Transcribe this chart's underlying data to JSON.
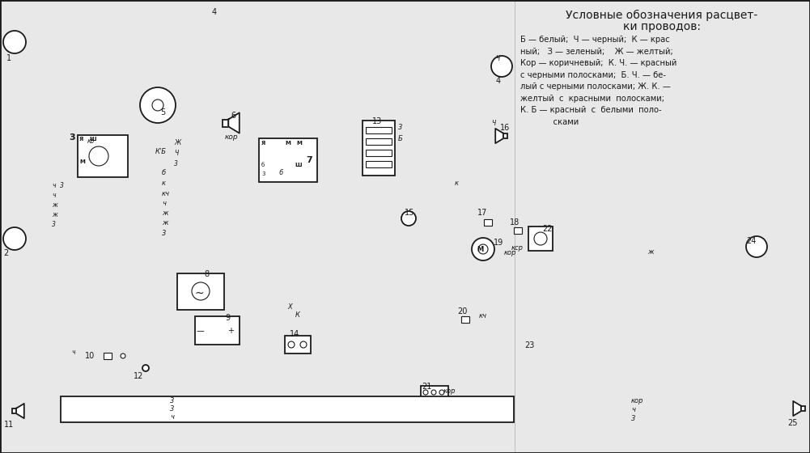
{
  "bg_color": "#e8e8e8",
  "line_color": "#1a1a1a",
  "fig_width": 10.01,
  "fig_height": 5.6,
  "dpi": 100,
  "legend_title1": "Условные обозначения расцвет-",
  "legend_title2": "ки проводов:",
  "legend_lines": [
    "Б — белый;  Ч — черный;  К — крас",
    "ный;   З — зеленый;    Ж — желтый;",
    "Кор — коричневый;  К. Ч. — красный",
    "с черными полосками;  Б. Ч. — бе-",
    "лый с черными полосками; Ж. К. —",
    "желтый  с  красными  полосками;",
    "К. Б — красный  с  белыми  поло-",
    "             сками"
  ],
  "title_fontsize": 10,
  "legend_fontsize": 7.2
}
